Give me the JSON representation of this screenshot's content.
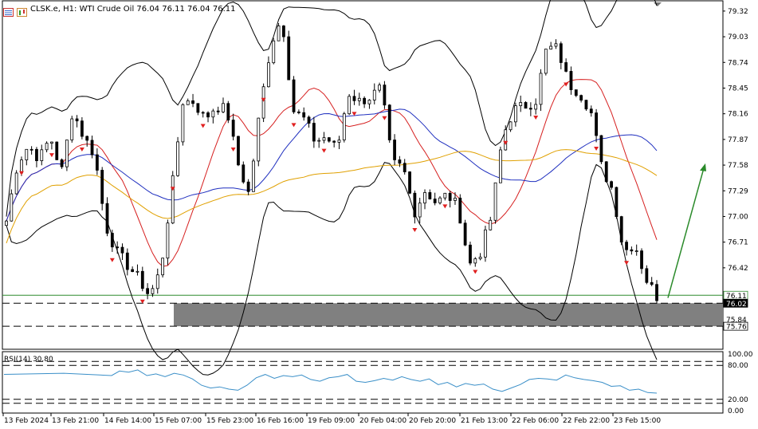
{
  "header": {
    "symbol_info": "CLSK.e, H1:  WTI Crude Oil  76.04 76.11 76.04 76.11",
    "icons": [
      "chart-window-icon",
      "chart-properties-icon"
    ]
  },
  "chart_data": [
    {
      "type": "candlestick",
      "title": "WTI Crude Oil",
      "symbol": "CLSK.e",
      "timeframe": "H1",
      "ohlc_last": {
        "open": 76.04,
        "high": 76.11,
        "low": 76.04,
        "close": 76.11
      },
      "ylim": [
        75.76,
        79.32
      ],
      "y_ticks": [
        "79.32",
        "79.03",
        "78.74",
        "78.45",
        "78.16",
        "77.87",
        "77.58",
        "77.29",
        "77.00",
        "76.71",
        "76.42"
      ],
      "price_tags": [
        {
          "label": "76.11",
          "value": 76.11,
          "bg": "#ffffff",
          "border": "#2e8b2e",
          "color": "#000000"
        },
        {
          "label": "76.02",
          "value": 76.02,
          "bg": "#000000",
          "border": "#000000",
          "color": "#ffffff"
        },
        {
          "label": "75.84",
          "value": 75.84,
          "bg": "#ffffff",
          "border": "#ffffff",
          "color": "#000000"
        },
        {
          "label": "75.76",
          "value": 75.76,
          "bg": "#ffffff",
          "border": "#000000",
          "color": "#000000"
        }
      ],
      "x_labels": [
        "13 Feb 2024",
        "13 Feb 21:00",
        "14 Feb 14:00",
        "15 Feb 07:00",
        "15 Feb 23:00",
        "16 Feb 16:00",
        "19 Feb 09:00",
        "20 Feb 04:00",
        "20 Feb 20:00",
        "21 Feb 13:00",
        "22 Feb 06:00",
        "22 Feb 22:00",
        "23 Feb 15:00"
      ],
      "close_path": [
        76.95,
        77.6,
        77.8,
        77.65,
        77.9,
        77.5,
        78.2,
        77.9,
        77.7,
        76.9,
        76.6,
        76.45,
        76.3,
        76.1,
        76.4,
        77.3,
        78.3,
        78.3,
        78.1,
        78.25,
        78.2,
        77.6,
        77.25,
        78.2,
        78.95,
        79.25,
        78.2,
        78.1,
        77.85,
        77.9,
        77.75,
        78.4,
        78.3,
        78.35,
        78.45,
        77.6,
        77.55,
        77.05,
        77.3,
        77.15,
        77.25,
        77.1,
        76.45,
        76.6,
        77.0,
        77.9,
        78.2,
        78.25,
        78.3,
        78.9,
        78.9,
        78.5,
        78.4,
        78.2,
        77.55,
        77.3,
        76.6,
        76.7,
        76.3,
        76.1
      ],
      "indicators": {
        "bollinger_bands": {
          "color": "#000000"
        },
        "ma_fast": {
          "color": "#d62020"
        },
        "ma_mid": {
          "color": "#1f2fbf"
        },
        "ma_slow": {
          "color": "#e0a000"
        }
      },
      "zone": {
        "top": 76.02,
        "bottom": 75.76,
        "color": "#808080"
      },
      "dashed_levels": [
        76.02,
        75.76
      ],
      "arrow_projection": {
        "from": 76.08,
        "to": 77.6,
        "color": "#2a8a2a"
      },
      "bullish_marker_color": "#2bb52b",
      "bearish_marker_color": "#e02020",
      "candle_color": "#000000"
    },
    {
      "type": "line",
      "indicator": "RSI",
      "label": "RSI(14) 30.80",
      "period": 14,
      "last_value": 30.8,
      "ylim": [
        0,
        100
      ],
      "y_ticks": [
        "100.00",
        "80.00",
        "20.00",
        "0.00"
      ],
      "levels": [
        80,
        20
      ],
      "color": "#3a8fc8",
      "values": [
        70,
        68,
        72,
        62,
        65,
        60,
        66,
        63,
        56,
        45,
        40,
        42,
        38,
        36,
        45,
        58,
        64,
        57,
        62,
        60,
        63,
        55,
        52,
        58,
        60,
        64,
        52,
        50,
        53,
        57,
        54,
        60,
        55,
        52,
        56,
        46,
        50,
        42,
        48,
        45,
        47,
        38,
        34,
        40,
        46,
        55,
        57,
        56,
        54,
        63,
        58,
        55,
        53,
        50,
        43,
        44,
        36,
        38,
        32,
        31
      ]
    }
  ]
}
